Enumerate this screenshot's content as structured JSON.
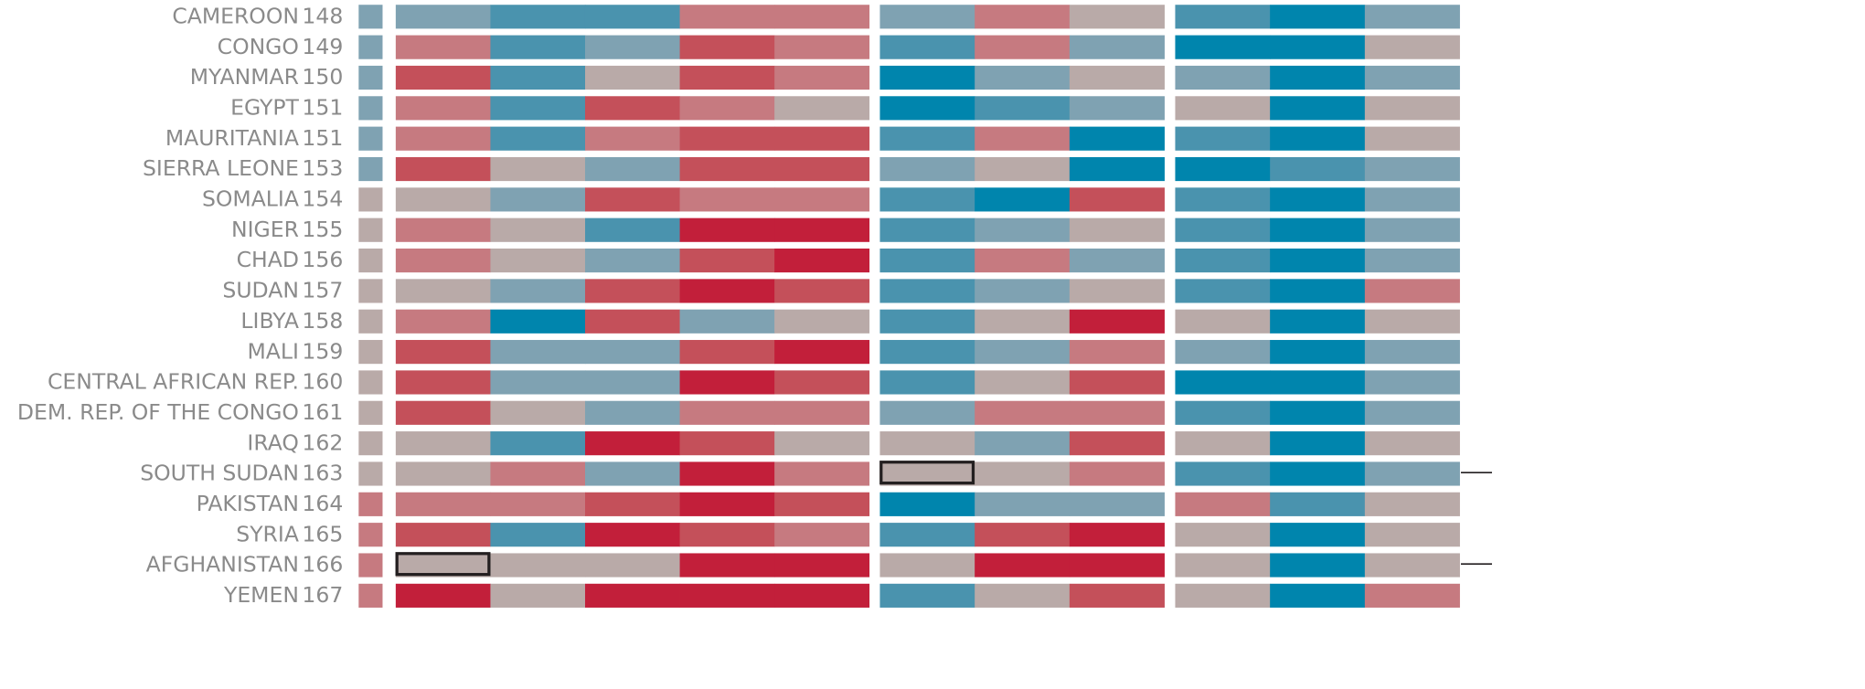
{
  "rows": [
    {
      "name": "CAMEROON",
      "rank": 148,
      "marker": "#7fa2b2",
      "cells": [
        "#7fa2b2",
        "#4a93ae",
        "#4a93ae",
        "#c67a80",
        "#c67a80",
        "#7fa2b2",
        "#c67a80",
        "#b9aaa8",
        "#4a93ae",
        "#0085ad",
        "#7fa2b2"
      ]
    },
    {
      "name": "CONGO",
      "rank": 149,
      "marker": "#7fa2b2",
      "cells": [
        "#c67a80",
        "#4a93ae",
        "#7fa2b2",
        "#c4505a",
        "#c67a80",
        "#4a93ae",
        "#c67a80",
        "#7fa2b2",
        "#0085ad",
        "#0085ad",
        "#b9aaa8"
      ]
    },
    {
      "name": "MYANMAR",
      "rank": 150,
      "marker": "#7fa2b2",
      "cells": [
        "#c4505a",
        "#4a93ae",
        "#b9aaa8",
        "#c4505a",
        "#c67a80",
        "#0085ad",
        "#7fa2b2",
        "#b9aaa8",
        "#7fa2b2",
        "#0085ad",
        "#7fa2b2"
      ]
    },
    {
      "name": "EGYPT",
      "rank": 151,
      "marker": "#7fa2b2",
      "cells": [
        "#c67a80",
        "#4a93ae",
        "#c4505a",
        "#c67a80",
        "#b9aaa8",
        "#0085ad",
        "#4a93ae",
        "#7fa2b2",
        "#b9aaa8",
        "#0085ad",
        "#b9aaa8"
      ]
    },
    {
      "name": "MAURITANIA",
      "rank": 151,
      "marker": "#7fa2b2",
      "cells": [
        "#c67a80",
        "#4a93ae",
        "#c67a80",
        "#c4505a",
        "#c4505a",
        "#4a93ae",
        "#c67a80",
        "#0085ad",
        "#4a93ae",
        "#0085ad",
        "#b9aaa8"
      ]
    },
    {
      "name": "SIERRA LEONE",
      "rank": 153,
      "marker": "#7fa2b2",
      "cells": [
        "#c4505a",
        "#b9aaa8",
        "#7fa2b2",
        "#c4505a",
        "#c4505a",
        "#7fa2b2",
        "#b9aaa8",
        "#0085ad",
        "#0085ad",
        "#4a93ae",
        "#7fa2b2"
      ]
    },
    {
      "name": "SOMALIA",
      "rank": 154,
      "marker": "#b9aaa8",
      "cells": [
        "#b9aaa8",
        "#7fa2b2",
        "#c4505a",
        "#c67a80",
        "#c67a80",
        "#4a93ae",
        "#0085ad",
        "#c4505a",
        "#4a93ae",
        "#0085ad",
        "#7fa2b2"
      ]
    },
    {
      "name": "NIGER",
      "rank": 155,
      "marker": "#b9aaa8",
      "cells": [
        "#c67a80",
        "#b9aaa8",
        "#4a93ae",
        "#c21f3a",
        "#c21f3a",
        "#4a93ae",
        "#7fa2b2",
        "#b9aaa8",
        "#4a93ae",
        "#0085ad",
        "#7fa2b2"
      ]
    },
    {
      "name": "CHAD",
      "rank": 156,
      "marker": "#b9aaa8",
      "cells": [
        "#c67a80",
        "#b9aaa8",
        "#7fa2b2",
        "#c4505a",
        "#c21f3a",
        "#4a93ae",
        "#c67a80",
        "#7fa2b2",
        "#4a93ae",
        "#0085ad",
        "#7fa2b2"
      ]
    },
    {
      "name": "SUDAN",
      "rank": 157,
      "marker": "#b9aaa8",
      "cells": [
        "#b9aaa8",
        "#7fa2b2",
        "#c4505a",
        "#c21f3a",
        "#c4505a",
        "#4a93ae",
        "#7fa2b2",
        "#b9aaa8",
        "#4a93ae",
        "#0085ad",
        "#c67a80"
      ]
    },
    {
      "name": "LIBYA",
      "rank": 158,
      "marker": "#b9aaa8",
      "cells": [
        "#c67a80",
        "#0085ad",
        "#c4505a",
        "#7fa2b2",
        "#b9aaa8",
        "#4a93ae",
        "#b9aaa8",
        "#c21f3a",
        "#b9aaa8",
        "#0085ad",
        "#b9aaa8"
      ]
    },
    {
      "name": "MALI",
      "rank": 159,
      "marker": "#b9aaa8",
      "cells": [
        "#c4505a",
        "#7fa2b2",
        "#7fa2b2",
        "#c4505a",
        "#c21f3a",
        "#4a93ae",
        "#7fa2b2",
        "#c67a80",
        "#7fa2b2",
        "#0085ad",
        "#7fa2b2"
      ]
    },
    {
      "name": "CENTRAL AFRICAN REP.",
      "rank": 160,
      "marker": "#b9aaa8",
      "cells": [
        "#c4505a",
        "#7fa2b2",
        "#7fa2b2",
        "#c21f3a",
        "#c4505a",
        "#4a93ae",
        "#b9aaa8",
        "#c4505a",
        "#0085ad",
        "#0085ad",
        "#7fa2b2"
      ]
    },
    {
      "name": "DEM. REP. OF THE CONGO",
      "rank": 161,
      "marker": "#b9aaa8",
      "cells": [
        "#c4505a",
        "#b9aaa8",
        "#7fa2b2",
        "#c67a80",
        "#c67a80",
        "#7fa2b2",
        "#c67a80",
        "#c67a80",
        "#4a93ae",
        "#0085ad",
        "#7fa2b2"
      ]
    },
    {
      "name": "IRAQ",
      "rank": 162,
      "marker": "#b9aaa8",
      "cells": [
        "#b9aaa8",
        "#4a93ae",
        "#c21f3a",
        "#c4505a",
        "#b9aaa8",
        "#b9aaa8",
        "#7fa2b2",
        "#c4505a",
        "#b9aaa8",
        "#0085ad",
        "#b9aaa8"
      ]
    },
    {
      "name": "SOUTH SUDAN",
      "rank": 163,
      "marker": "#b9aaa8",
      "cells": [
        "#b9aaa8",
        "#c67a80",
        "#7fa2b2",
        "#c21f3a",
        "#c67a80",
        "#b9aaa8",
        "#b9aaa8",
        "#c67a80",
        "#4a93ae",
        "#0085ad",
        "#7fa2b2"
      ]
    },
    {
      "name": "PAKISTAN",
      "rank": 164,
      "marker": "#c67a80",
      "cells": [
        "#c67a80",
        "#c67a80",
        "#c4505a",
        "#c21f3a",
        "#c4505a",
        "#0085ad",
        "#7fa2b2",
        "#7fa2b2",
        "#c67a80",
        "#4a93ae",
        "#b9aaa8"
      ]
    },
    {
      "name": "SYRIA",
      "rank": 165,
      "marker": "#c67a80",
      "cells": [
        "#c4505a",
        "#4a93ae",
        "#c21f3a",
        "#c4505a",
        "#c67a80",
        "#4a93ae",
        "#c4505a",
        "#c21f3a",
        "#b9aaa8",
        "#0085ad",
        "#b9aaa8"
      ]
    },
    {
      "name": "AFGHANISTAN",
      "rank": 166,
      "marker": "#c67a80",
      "cells": [
        "#b9aaa8",
        "#b9aaa8",
        "#b9aaa8",
        "#c21f3a",
        "#c21f3a",
        "#b9aaa8",
        "#c21f3a",
        "#c21f3a",
        "#b9aaa8",
        "#0085ad",
        "#b9aaa8"
      ]
    },
    {
      "name": "YEMEN",
      "rank": 167,
      "marker": "#c67a80",
      "cells": [
        "#c21f3a",
        "#b9aaa8",
        "#c21f3a",
        "#c21f3a",
        "#c21f3a",
        "#4a93ae",
        "#b9aaa8",
        "#c4505a",
        "#b9aaa8",
        "#0085ad",
        "#c67a80"
      ]
    }
  ]
}
